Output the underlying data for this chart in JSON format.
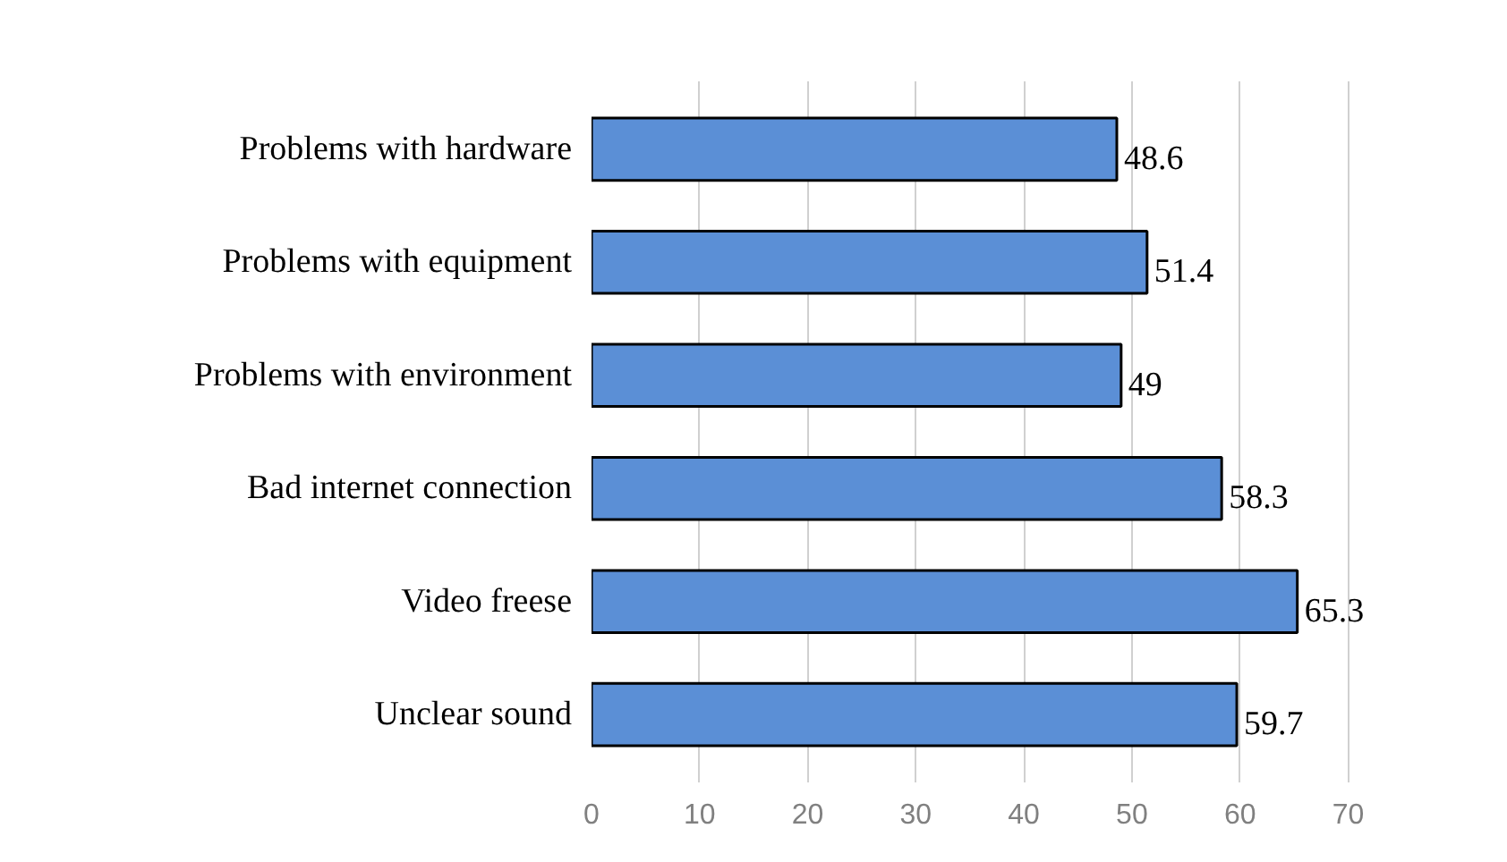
{
  "chart_data": {
    "type": "bar",
    "orientation": "horizontal",
    "categories": [
      "Problems with hardware",
      "Problems with equipment",
      "Problems with environment",
      "Bad internet connection",
      "Video freese",
      "Unclear sound"
    ],
    "values": [
      48.6,
      51.4,
      49,
      58.3,
      65.3,
      59.7
    ],
    "color": "#5b8fd6",
    "xlim": [
      0,
      70
    ],
    "xticks": [
      0,
      10,
      20,
      30,
      40,
      50,
      60,
      70
    ],
    "grid": "x",
    "data_labels": true
  }
}
